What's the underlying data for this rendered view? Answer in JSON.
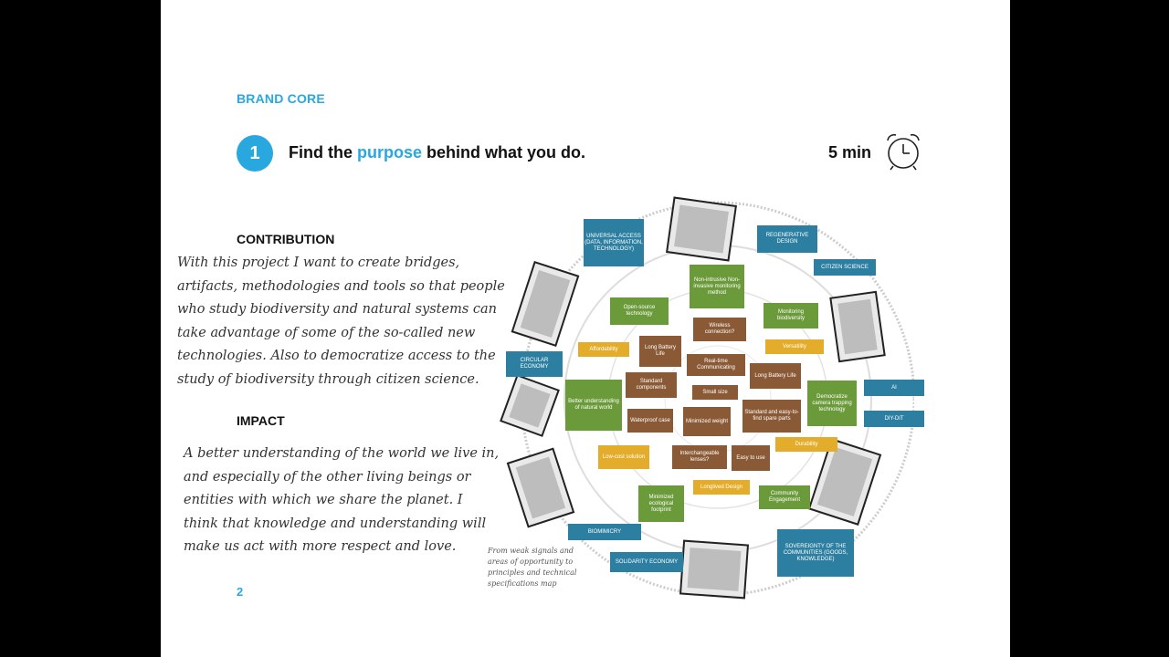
{
  "header": {
    "brand_core": "BRAND CORE",
    "step_number": "1",
    "title_before": "Find the ",
    "title_highlight": "purpose",
    "title_after": " behind what you do.",
    "duration": "5 min"
  },
  "contribution": {
    "heading": "CONTRIBUTION",
    "lines": [
      "With this project I want to create bridges,",
      "artifacts, methodologies and tools so that people",
      "who study biodiversity and natural systems can",
      "take advantage of some of the so-called new",
      "technologies. Also to democratize access to the",
      "study of biodiversity through citizen science."
    ]
  },
  "impact": {
    "heading": "IMPACT",
    "lines": [
      "A better understanding of the world we live in,",
      "and especially of the other living beings or",
      "entities with which we share the planet. I",
      "think that knowledge and understanding will",
      "make us act with more respect and love."
    ]
  },
  "page_number": "2",
  "map": {
    "caption": "From weak signals and areas of opportunity to principles and technical specifications map",
    "outer_labels": [
      "UNIVERSAL ACCESS (DATA, INFORMATION, TECHNOLOGY)",
      "REGENERATIVE DESIGN",
      "CITIZEN SCIENCE",
      "CIRCULAR ECONOMY",
      "AI",
      "DIY-DIT",
      "BIOMIMICRY",
      "SOLIDARITY ECONOMY",
      "SOVEREIGNTY OF THE COMMUNITIES (GOODS, KNOWLEDGE)"
    ],
    "green_labels": [
      "Non-intrusive Non-invasive monitoring method",
      "Open-source technology",
      "Monitoring biodiversity",
      "Better understanding of natural world",
      "Democratize camera trapping technology",
      "Minimized ecological footprint",
      "Community Engagement"
    ],
    "brown_labels": [
      "Wireless connection?",
      "Long Battery Life",
      "Real-time Communicating",
      "Long Battery Life",
      "Standard components",
      "Small size",
      "Standard and easy-to-find spare parts",
      "Waterproof case",
      "Minimized weight",
      "Interchangeable lenses?",
      "Easy to use"
    ],
    "yellow_labels": [
      "Affordability",
      "Versatility",
      "Low-cost solution",
      "Durability",
      "Longlived Design"
    ]
  }
}
